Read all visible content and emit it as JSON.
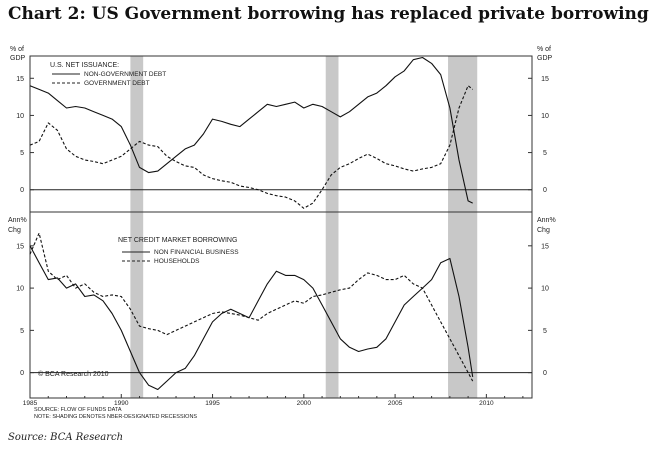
{
  "title": "Chart 2:  US Government borrowing has replaced private borrowing",
  "source": "Source: BCA Research",
  "copyright": "© BCA Research 2010",
  "footnotes": [
    "SOURCE: FLOW OF FUNDS DATA",
    "NOTE:  SHADING DENOTES NBER-DESIGNATED RECESSIONS"
  ],
  "chart_data": [
    {
      "type": "line",
      "title": "U.S. NET ISSUANCE:",
      "ylabel_left": [
        "% of",
        "GDP"
      ],
      "ylabel_right": [
        "% of",
        "GDP"
      ],
      "ylim": [
        -3,
        18
      ],
      "yticks": [
        0,
        5,
        10,
        15
      ],
      "xlim": [
        1985,
        2012.5
      ],
      "grid": false,
      "legend_position": "top-left",
      "recessions": [
        [
          1990.5,
          1991.2
        ],
        [
          2001.2,
          2001.9
        ],
        [
          2007.9,
          2009.5
        ]
      ],
      "series": [
        {
          "name": "NON-GOVERNMENT DEBT",
          "style": "solid",
          "x": [
            1985,
            1985.5,
            1986,
            1986.5,
            1987,
            1987.5,
            1988,
            1988.5,
            1989,
            1989.5,
            1990,
            1990.5,
            1991,
            1991.5,
            1992,
            1992.5,
            1993,
            1993.5,
            1994,
            1994.5,
            1995,
            1995.5,
            1996,
            1996.5,
            1997,
            1997.5,
            1998,
            1998.5,
            1999,
            1999.5,
            2000,
            2000.5,
            2001,
            2001.5,
            2002,
            2002.5,
            2003,
            2003.5,
            2004,
            2004.5,
            2005,
            2005.5,
            2006,
            2006.5,
            2007,
            2007.5,
            2008,
            2008.5,
            2009,
            2009.25
          ],
          "values": [
            14,
            13.5,
            13,
            12,
            11,
            11.2,
            11,
            10.5,
            10,
            9.5,
            8.5,
            6,
            3,
            2.3,
            2.5,
            3.5,
            4.5,
            5.5,
            6,
            7.5,
            9.5,
            9.2,
            8.8,
            8.5,
            9.5,
            10.5,
            11.5,
            11.2,
            11.5,
            11.8,
            11,
            11.5,
            11.2,
            10.5,
            9.8,
            10.5,
            11.5,
            12.5,
            13,
            14,
            15.2,
            16,
            17.5,
            17.8,
            17,
            15.5,
            11,
            4,
            -1.5,
            -1.8
          ]
        },
        {
          "name": "GOVERNMENT DEBT",
          "style": "dashed",
          "x": [
            1985,
            1985.5,
            1986,
            1986.5,
            1987,
            1987.5,
            1988,
            1988.5,
            1989,
            1989.5,
            1990,
            1990.5,
            1991,
            1991.5,
            1992,
            1992.5,
            1993,
            1993.5,
            1994,
            1994.5,
            1995,
            1995.5,
            1996,
            1996.5,
            1997,
            1997.5,
            1998,
            1998.5,
            1999,
            1999.5,
            2000,
            2000.5,
            2001,
            2001.5,
            2002,
            2002.5,
            2003,
            2003.5,
            2004,
            2004.5,
            2005,
            2005.5,
            2006,
            2006.5,
            2007,
            2007.5,
            2008,
            2008.5,
            2009,
            2009.25
          ],
          "values": [
            6,
            6.5,
            9,
            8,
            5.5,
            4.5,
            4,
            3.8,
            3.5,
            4,
            4.5,
            5.5,
            6.5,
            6,
            5.8,
            4.5,
            3.8,
            3.2,
            3,
            2,
            1.5,
            1.2,
            1,
            0.5,
            0.3,
            0,
            -0.5,
            -0.8,
            -1,
            -1.5,
            -2.5,
            -1.8,
            0,
            2,
            3,
            3.5,
            4.2,
            4.8,
            4.2,
            3.5,
            3.2,
            2.8,
            2.5,
            2.8,
            3,
            3.5,
            6,
            11,
            14,
            13.5
          ]
        }
      ]
    },
    {
      "type": "line",
      "title": "NET CREDIT MARKET BORROWING",
      "ylabel_left": [
        "Ann%",
        "Chg"
      ],
      "ylabel_right": [
        "Ann%",
        "Chg"
      ],
      "ylim": [
        -3,
        19
      ],
      "yticks": [
        0,
        5,
        10,
        15
      ],
      "xlim": [
        1985,
        2012.5
      ],
      "xticks": [
        "1985",
        "1990",
        "1995",
        "2000",
        "2005",
        "2010"
      ],
      "grid": false,
      "legend_position": "top-left",
      "recessions": [
        [
          1990.5,
          1991.2
        ],
        [
          2001.2,
          2001.9
        ],
        [
          2007.9,
          2009.5
        ]
      ],
      "series": [
        {
          "name": "NON FINANCIAL BUSINESS",
          "style": "solid",
          "x": [
            1985,
            1985.5,
            1986,
            1986.5,
            1987,
            1987.5,
            1988,
            1988.5,
            1989,
            1989.5,
            1990,
            1990.5,
            1991,
            1991.5,
            1992,
            1992.5,
            1993,
            1993.5,
            1994,
            1994.5,
            1995,
            1995.5,
            1996,
            1996.5,
            1997,
            1997.5,
            1998,
            1998.5,
            1999,
            1999.5,
            2000,
            2000.5,
            2001,
            2001.5,
            2002,
            2002.5,
            2003,
            2003.5,
            2004,
            2004.5,
            2005,
            2005.5,
            2006,
            2006.5,
            2007,
            2007.5,
            2008,
            2008.5,
            2009,
            2009.25
          ],
          "values": [
            15,
            13,
            11,
            11.2,
            10,
            10.5,
            9,
            9.2,
            8.5,
            7,
            5,
            2.5,
            0,
            -1.5,
            -2,
            -1,
            0,
            0.5,
            2,
            4,
            6,
            7,
            7.5,
            7,
            6.5,
            8.5,
            10.5,
            12,
            11.5,
            11.5,
            11,
            10,
            8,
            6,
            4,
            3,
            2.5,
            2.8,
            3,
            4,
            6,
            8,
            9,
            10,
            11,
            13,
            13.5,
            9,
            3,
            -0.5
          ]
        },
        {
          "name": "HOUSEHOLDS",
          "style": "dashed",
          "x": [
            1985,
            1985.5,
            1986,
            1986.5,
            1987,
            1987.5,
            1988,
            1988.5,
            1989,
            1989.5,
            1990,
            1990.5,
            1991,
            1991.5,
            1992,
            1992.5,
            1993,
            1993.5,
            1994,
            1994.5,
            1995,
            1995.5,
            1996,
            1996.5,
            1997,
            1997.5,
            1998,
            1998.5,
            1999,
            1999.5,
            2000,
            2000.5,
            2001,
            2001.5,
            2002,
            2002.5,
            2003,
            2003.5,
            2004,
            2004.5,
            2005,
            2005.5,
            2006,
            2006.5,
            2007,
            2007.5,
            2008,
            2008.5,
            2009,
            2009.25
          ],
          "values": [
            14,
            16.5,
            12,
            11,
            11.5,
            10,
            10.5,
            9.5,
            9,
            9.2,
            9,
            7.5,
            5.5,
            5.2,
            5,
            4.5,
            5,
            5.5,
            6,
            6.5,
            7,
            7.2,
            7,
            6.8,
            6.5,
            6.2,
            7,
            7.5,
            8,
            8.5,
            8.2,
            9,
            9.2,
            9.5,
            9.8,
            10,
            11,
            11.8,
            11.5,
            11,
            11,
            11.5,
            10.5,
            10,
            8,
            6,
            4,
            2,
            0,
            -1
          ]
        }
      ]
    }
  ]
}
